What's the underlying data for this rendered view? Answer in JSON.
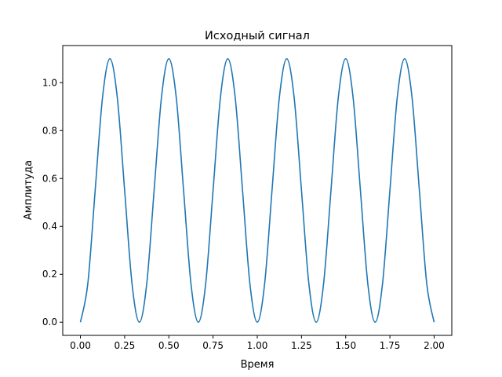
{
  "chart_data": {
    "type": "line",
    "title": "Исходный сигнал",
    "xlabel": "Время",
    "ylabel": "Амплитуда",
    "xlim": [
      -0.1,
      2.1
    ],
    "ylim": [
      -0.055,
      1.155
    ],
    "xticks": [
      0.0,
      0.25,
      0.5,
      0.75,
      1.0,
      1.25,
      1.5,
      1.75,
      2.0
    ],
    "xtick_labels": [
      "0.00",
      "0.25",
      "0.50",
      "0.75",
      "1.00",
      "1.25",
      "1.50",
      "1.75",
      "2.00"
    ],
    "yticks": [
      0.0,
      0.2,
      0.4,
      0.6,
      0.8,
      1.0
    ],
    "ytick_labels": [
      "0.0",
      "0.2",
      "0.4",
      "0.6",
      "0.8",
      "1.0"
    ],
    "grid": false,
    "series": [
      {
        "color": "#1f77b4",
        "x": [
          0.0,
          0.0417,
          0.0833,
          0.125,
          0.1667,
          0.2083,
          0.25,
          0.2917,
          0.3333,
          0.375,
          0.4167,
          0.4583,
          0.5,
          0.5417,
          0.5833,
          0.625,
          0.6667,
          0.7083,
          0.75,
          0.7917,
          0.8333,
          0.875,
          0.9167,
          0.9583,
          1.0,
          1.0417,
          1.0833,
          1.125,
          1.1667,
          1.2083,
          1.25,
          1.2917,
          1.3333,
          1.375,
          1.4167,
          1.4583,
          1.5,
          1.5417,
          1.5833,
          1.625,
          1.6667,
          1.7083,
          1.75,
          1.7917,
          1.8333,
          1.875,
          1.9167,
          1.9583,
          2.0
        ],
        "y": [
          0.0,
          0.161,
          0.55,
          0.939,
          1.1,
          0.939,
          0.55,
          0.161,
          0.0,
          0.161,
          0.55,
          0.939,
          1.1,
          0.939,
          0.55,
          0.161,
          0.0,
          0.161,
          0.55,
          0.939,
          1.1,
          0.939,
          0.55,
          0.161,
          0.0,
          0.161,
          0.55,
          0.939,
          1.1,
          0.939,
          0.55,
          0.161,
          0.0,
          0.161,
          0.55,
          0.939,
          1.1,
          0.939,
          0.55,
          0.161,
          0.0,
          0.161,
          0.55,
          0.939,
          1.1,
          0.939,
          0.55,
          0.161,
          0.0
        ]
      }
    ]
  }
}
